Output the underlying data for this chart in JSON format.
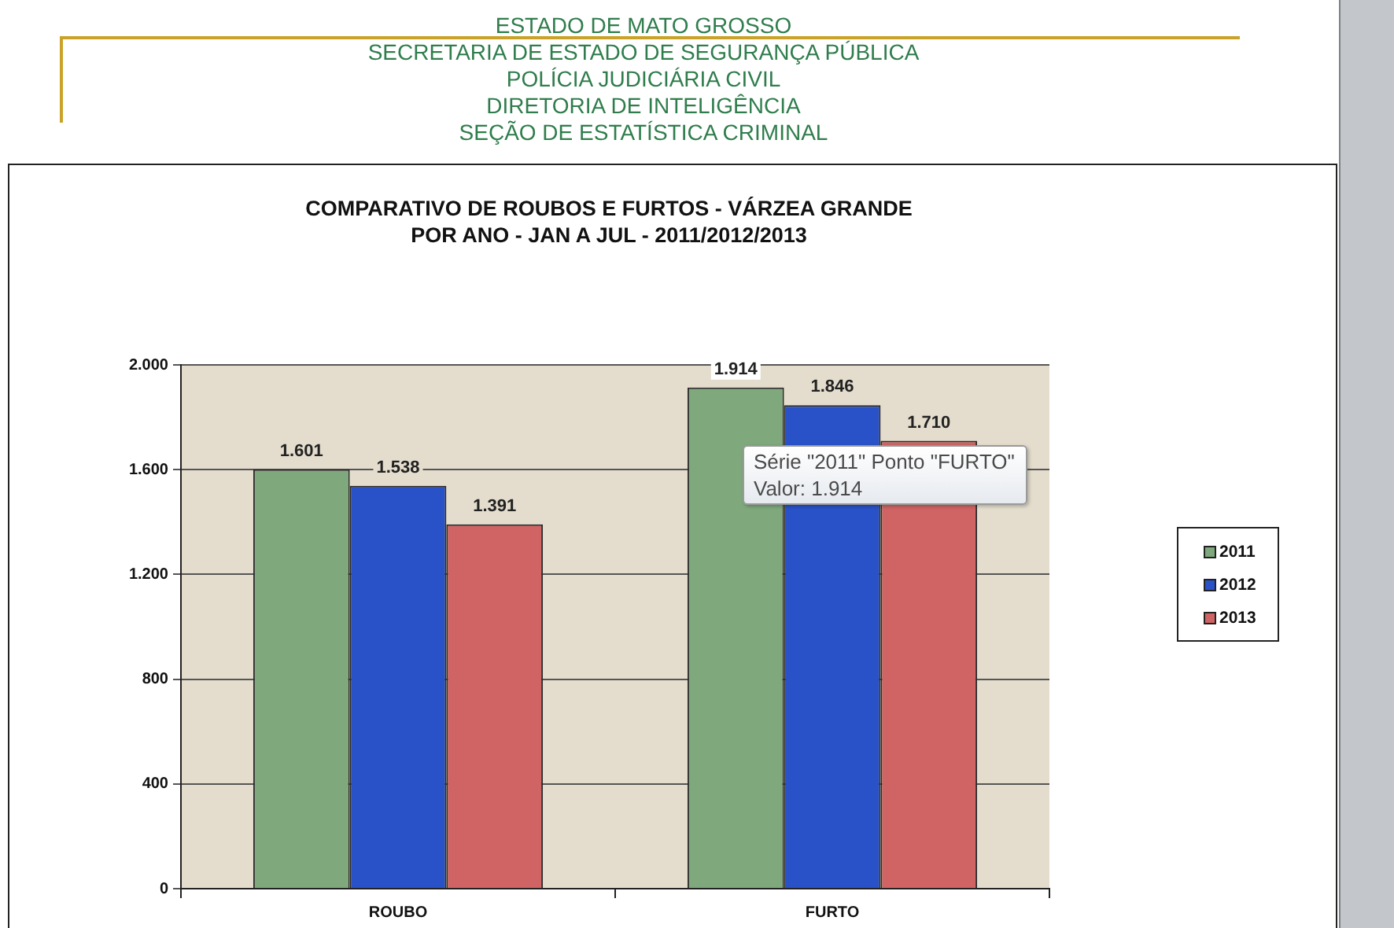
{
  "chart_data": {
    "type": "bar",
    "title": "COMPARATIVO DE ROUBOS E FURTOS - VÁRZEA GRANDE",
    "subtitle": "POR ANO - JAN A JUL - 2011/2012/2013",
    "categories": [
      "ROUBO",
      "FURTO"
    ],
    "series": [
      {
        "name": "2011",
        "color": "#7fa97c",
        "values": [
          1601,
          1914
        ],
        "value_labels": [
          "1.601",
          "1.914"
        ]
      },
      {
        "name": "2012",
        "color": "#2a52c8",
        "values": [
          1538,
          1846
        ],
        "value_labels": [
          "1.538",
          "1.846"
        ]
      },
      {
        "name": "2013",
        "color": "#d06464",
        "values": [
          1391,
          1710
        ],
        "value_labels": [
          "1.391",
          "1.710"
        ]
      }
    ],
    "ylim": [
      0,
      2000
    ],
    "yticks": [
      0,
      400,
      800,
      {
        "value": 1200,
        "label": "1.200"
      },
      {
        "value": 1600,
        "label": "1.600"
      },
      {
        "value": 2000,
        "label": "2.000"
      }
    ],
    "grid": "y",
    "legend": "right",
    "annotations": [
      "ESTADO DE MATO GROSSO",
      "SECRETARIA DE ESTADO DE SEGURANÇA PÚBLICA",
      "POLÍCIA JUDICIÁRIA CIVIL",
      "DIRETORIA DE INTELIGÊNCIA",
      "SEÇÃO DE ESTATÍSTICA CRIMINAL",
      "Série \"2011\" Ponto \"FURTO\"\nValor: 1.914"
    ]
  }
}
